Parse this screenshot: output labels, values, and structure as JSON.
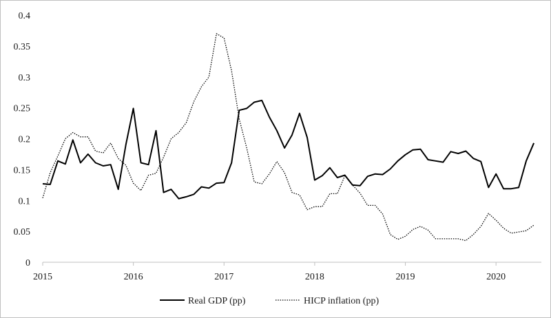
{
  "chart_data": {
    "type": "line",
    "title": "",
    "xlabel": "",
    "ylabel": "",
    "ylim": [
      0,
      0.4
    ],
    "xlim": [
      2015,
      2020.5
    ],
    "y_ticks": [
      0,
      0.05,
      0.1,
      0.15,
      0.2,
      0.25,
      0.3,
      0.35,
      0.4
    ],
    "y_tick_labels": [
      "0",
      "0.05",
      "0.1",
      "0.15",
      "0.2",
      "0.25",
      "0.3",
      "0.35",
      "0.4"
    ],
    "x_ticks": [
      2015,
      2016,
      2017,
      2018,
      2019,
      2020
    ],
    "x_tick_labels": [
      "2015",
      "2016",
      "2017",
      "2018",
      "2019",
      "2020"
    ],
    "grid": false,
    "legend_position": "bottom",
    "series": [
      {
        "name": "Real GDP (pp)",
        "style": "solid",
        "color": "#000000",
        "x": [
          2015.0,
          2015.083,
          2015.167,
          2015.25,
          2015.333,
          2015.417,
          2015.5,
          2015.583,
          2015.667,
          2015.75,
          2015.833,
          2015.917,
          2016.0,
          2016.083,
          2016.167,
          2016.25,
          2016.333,
          2016.417,
          2016.5,
          2016.583,
          2016.667,
          2016.75,
          2016.833,
          2016.917,
          2017.0,
          2017.083,
          2017.167,
          2017.25,
          2017.333,
          2017.417,
          2017.5,
          2017.583,
          2017.667,
          2017.75,
          2017.833,
          2017.917,
          2018.0,
          2018.083,
          2018.167,
          2018.25,
          2018.333,
          2018.417,
          2018.5,
          2018.583,
          2018.667,
          2018.75,
          2018.833,
          2018.917,
          2019.0,
          2019.083,
          2019.167,
          2019.25,
          2019.333,
          2019.417,
          2019.5,
          2019.583,
          2019.667,
          2019.75,
          2019.833,
          2019.917,
          2020.0,
          2020.083,
          2020.167,
          2020.25,
          2020.333,
          2020.417
        ],
        "values": [
          0.127,
          0.126,
          0.164,
          0.159,
          0.198,
          0.161,
          0.175,
          0.161,
          0.156,
          0.158,
          0.118,
          0.19,
          0.249,
          0.161,
          0.158,
          0.213,
          0.113,
          0.118,
          0.103,
          0.106,
          0.11,
          0.122,
          0.12,
          0.128,
          0.129,
          0.161,
          0.246,
          0.249,
          0.259,
          0.262,
          0.235,
          0.213,
          0.185,
          0.206,
          0.241,
          0.202,
          0.133,
          0.14,
          0.153,
          0.137,
          0.141,
          0.125,
          0.124,
          0.139,
          0.143,
          0.142,
          0.151,
          0.164,
          0.174,
          0.182,
          0.183,
          0.166,
          0.164,
          0.162,
          0.179,
          0.176,
          0.18,
          0.168,
          0.163,
          0.121,
          0.143,
          0.119,
          0.119,
          0.121,
          0.164,
          0.193
        ]
      },
      {
        "name": "HICP inflation (pp)",
        "style": "dotted",
        "color": "#000000",
        "x": [
          2015.0,
          2015.083,
          2015.167,
          2015.25,
          2015.333,
          2015.417,
          2015.5,
          2015.583,
          2015.667,
          2015.75,
          2015.833,
          2015.917,
          2016.0,
          2016.083,
          2016.167,
          2016.25,
          2016.333,
          2016.417,
          2016.5,
          2016.583,
          2016.667,
          2016.75,
          2016.833,
          2016.917,
          2017.0,
          2017.083,
          2017.167,
          2017.25,
          2017.333,
          2017.417,
          2017.5,
          2017.583,
          2017.667,
          2017.75,
          2017.833,
          2017.917,
          2018.0,
          2018.083,
          2018.167,
          2018.25,
          2018.333,
          2018.417,
          2018.5,
          2018.583,
          2018.667,
          2018.75,
          2018.833,
          2018.917,
          2019.0,
          2019.083,
          2019.167,
          2019.25,
          2019.333,
          2019.417,
          2019.5,
          2019.583,
          2019.667,
          2019.75,
          2019.833,
          2019.917,
          2020.0,
          2020.083,
          2020.167,
          2020.25,
          2020.333,
          2020.417
        ],
        "values": [
          0.104,
          0.145,
          0.172,
          0.2,
          0.21,
          0.203,
          0.203,
          0.18,
          0.177,
          0.193,
          0.168,
          0.157,
          0.128,
          0.116,
          0.141,
          0.144,
          0.17,
          0.2,
          0.21,
          0.226,
          0.26,
          0.284,
          0.3,
          0.37,
          0.363,
          0.31,
          0.232,
          0.185,
          0.13,
          0.127,
          0.143,
          0.163,
          0.145,
          0.113,
          0.109,
          0.085,
          0.09,
          0.09,
          0.111,
          0.111,
          0.14,
          0.125,
          0.112,
          0.092,
          0.092,
          0.078,
          0.045,
          0.037,
          0.042,
          0.053,
          0.058,
          0.052,
          0.038,
          0.038,
          0.038,
          0.038,
          0.035,
          0.045,
          0.058,
          0.079,
          0.068,
          0.055,
          0.047,
          0.049,
          0.051,
          0.06
        ]
      }
    ]
  }
}
